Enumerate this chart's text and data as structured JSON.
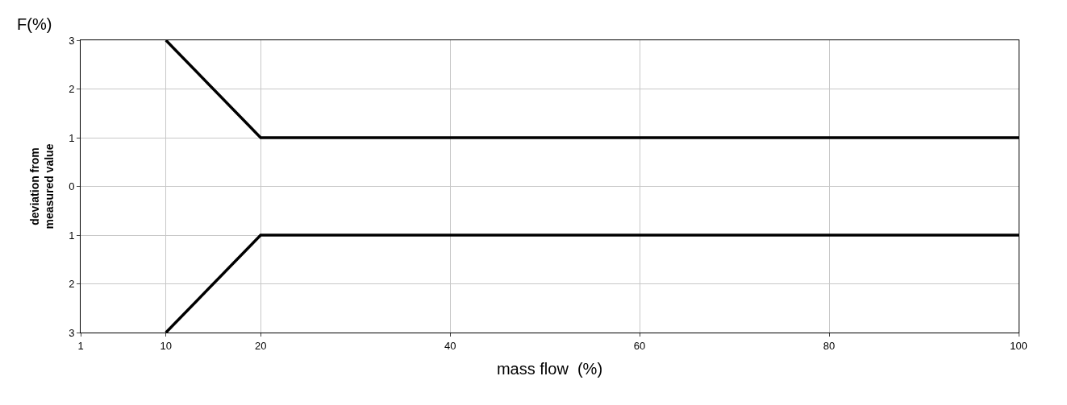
{
  "chart_data": {
    "type": "line",
    "x": [
      10,
      20,
      100
    ],
    "series": [
      {
        "color": "#000000",
        "values": [
          3,
          1,
          1
        ]
      },
      {
        "color": "#000000",
        "values": [
          -3,
          -1,
          -1
        ]
      }
    ],
    "xlabel": "mass flow  (%)",
    "ylabel": "deviation from\nmeasured value",
    "annotations": [
      "F(%)"
    ],
    "xlim": [
      1,
      100
    ],
    "xticks": [
      1,
      10,
      20,
      40,
      60,
      80,
      100
    ],
    "ylim": [
      -3,
      3
    ],
    "yticks": [
      {
        "value": -3,
        "label": "3"
      },
      {
        "value": -2,
        "label": "2"
      },
      {
        "value": -1,
        "label": "1"
      },
      0,
      1,
      2,
      3
    ],
    "grid": true,
    "marker": "none",
    "line_style": "solid"
  }
}
